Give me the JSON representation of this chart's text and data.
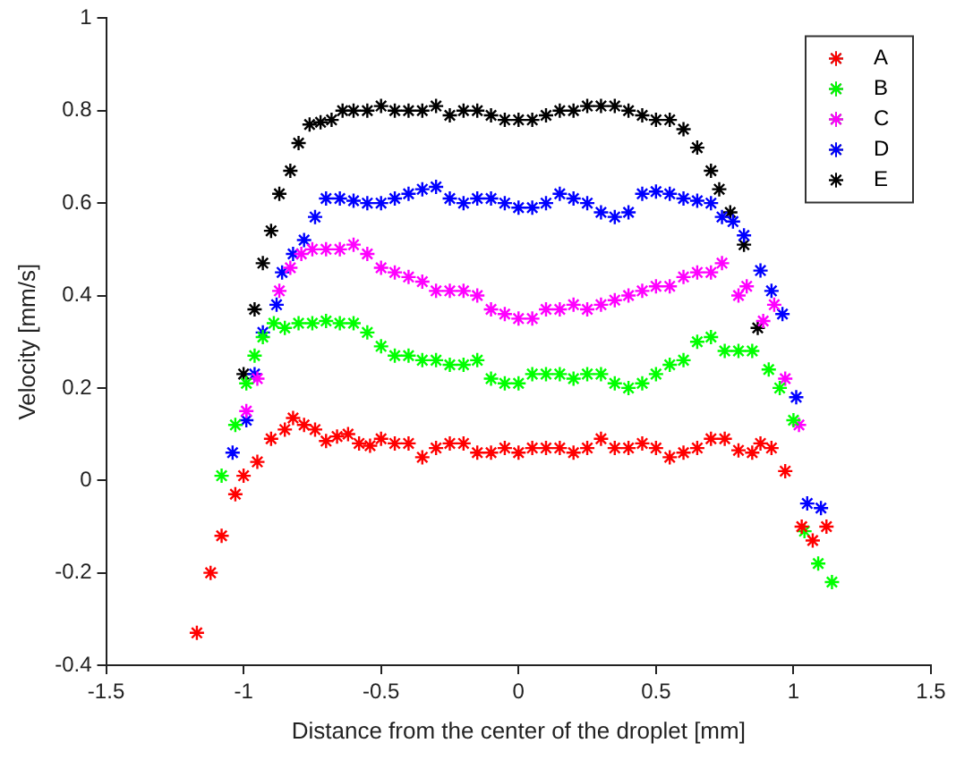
{
  "chart_data": {
    "type": "scatter",
    "xlabel": "Distance from the center of the droplet [mm]",
    "ylabel": "Velocity [mm/s]",
    "xlim": [
      -1.5,
      1.5
    ],
    "xticks": [
      -1.5,
      -1,
      -0.5,
      0,
      0.5,
      1,
      1.5
    ],
    "ylim": [
      -0.4,
      1
    ],
    "yticks": [
      -0.4,
      -0.2,
      0,
      0.2,
      0.4,
      0.6,
      0.8,
      1
    ],
    "grid": false,
    "legend": "top right",
    "marker": "cross",
    "series": [
      {
        "name": "A",
        "color": "#ff0000",
        "x": [
          -1.17,
          -1.12,
          -1.08,
          -1.03,
          -1.0,
          -0.95,
          -0.9,
          -0.85,
          -0.82,
          -0.78,
          -0.74,
          -0.7,
          -0.66,
          -0.62,
          -0.58,
          -0.54,
          -0.5,
          -0.45,
          -0.4,
          -0.35,
          -0.3,
          -0.25,
          -0.2,
          -0.15,
          -0.1,
          -0.05,
          0,
          0.05,
          0.1,
          0.15,
          0.2,
          0.25,
          0.3,
          0.35,
          0.4,
          0.45,
          0.5,
          0.55,
          0.6,
          0.65,
          0.7,
          0.75,
          0.8,
          0.85,
          0.88,
          0.92,
          0.97,
          1.03,
          1.07,
          1.12
        ],
        "values": [
          -0.33,
          -0.2,
          -0.12,
          -0.03,
          0.01,
          0.04,
          0.09,
          0.11,
          0.135,
          0.12,
          0.11,
          0.085,
          0.095,
          0.1,
          0.08,
          0.075,
          0.09,
          0.08,
          0.08,
          0.05,
          0.07,
          0.08,
          0.08,
          0.06,
          0.06,
          0.07,
          0.06,
          0.07,
          0.07,
          0.07,
          0.06,
          0.07,
          0.09,
          0.07,
          0.07,
          0.08,
          0.07,
          0.05,
          0.06,
          0.07,
          0.09,
          0.09,
          0.065,
          0.06,
          0.08,
          0.07,
          0.02,
          -0.1,
          -0.13,
          -0.1
        ]
      },
      {
        "name": "B",
        "color": "#00ff00",
        "x": [
          -1.08,
          -1.03,
          -0.99,
          -0.96,
          -0.93,
          -0.89,
          -0.85,
          -0.8,
          -0.75,
          -0.7,
          -0.65,
          -0.6,
          -0.55,
          -0.5,
          -0.45,
          -0.4,
          -0.35,
          -0.3,
          -0.25,
          -0.2,
          -0.15,
          -0.1,
          -0.05,
          0,
          0.05,
          0.1,
          0.15,
          0.2,
          0.25,
          0.3,
          0.35,
          0.4,
          0.45,
          0.5,
          0.55,
          0.6,
          0.65,
          0.7,
          0.75,
          0.8,
          0.85,
          0.91,
          0.95,
          1.0,
          1.04,
          1.09,
          1.14
        ],
        "values": [
          0.01,
          0.12,
          0.21,
          0.27,
          0.31,
          0.34,
          0.33,
          0.34,
          0.34,
          0.345,
          0.34,
          0.34,
          0.32,
          0.29,
          0.27,
          0.27,
          0.26,
          0.26,
          0.25,
          0.25,
          0.26,
          0.22,
          0.21,
          0.21,
          0.23,
          0.23,
          0.23,
          0.22,
          0.23,
          0.23,
          0.21,
          0.2,
          0.21,
          0.23,
          0.25,
          0.26,
          0.3,
          0.31,
          0.28,
          0.28,
          0.28,
          0.24,
          0.2,
          0.13,
          -0.11,
          -0.18,
          -0.22
        ]
      },
      {
        "name": "C",
        "color": "#ff00ff",
        "x": [
          -0.99,
          -0.95,
          -0.87,
          -0.83,
          -0.79,
          -0.75,
          -0.7,
          -0.65,
          -0.6,
          -0.55,
          -0.5,
          -0.45,
          -0.4,
          -0.35,
          -0.3,
          -0.25,
          -0.2,
          -0.15,
          -0.1,
          -0.05,
          0,
          0.05,
          0.1,
          0.15,
          0.2,
          0.25,
          0.3,
          0.35,
          0.4,
          0.45,
          0.5,
          0.55,
          0.6,
          0.65,
          0.7,
          0.74,
          0.8,
          0.83,
          0.89,
          0.93,
          0.97,
          1.02
        ],
        "values": [
          0.15,
          0.22,
          0.41,
          0.46,
          0.49,
          0.5,
          0.5,
          0.5,
          0.51,
          0.49,
          0.46,
          0.45,
          0.44,
          0.43,
          0.41,
          0.41,
          0.41,
          0.4,
          0.37,
          0.36,
          0.35,
          0.35,
          0.37,
          0.37,
          0.38,
          0.37,
          0.38,
          0.39,
          0.4,
          0.41,
          0.42,
          0.42,
          0.44,
          0.45,
          0.45,
          0.47,
          0.4,
          0.42,
          0.345,
          0.38,
          0.22,
          0.12
        ]
      },
      {
        "name": "D",
        "color": "#0000ff",
        "x": [
          -1.04,
          -0.99,
          -0.96,
          -0.93,
          -0.88,
          -0.86,
          -0.82,
          -0.78,
          -0.74,
          -0.7,
          -0.65,
          -0.6,
          -0.55,
          -0.5,
          -0.45,
          -0.4,
          -0.35,
          -0.3,
          -0.25,
          -0.2,
          -0.15,
          -0.1,
          -0.05,
          0,
          0.05,
          0.1,
          0.15,
          0.2,
          0.25,
          0.3,
          0.35,
          0.4,
          0.45,
          0.5,
          0.55,
          0.6,
          0.65,
          0.7,
          0.74,
          0.78,
          0.82,
          0.88,
          0.92,
          0.96,
          1.01,
          1.05,
          1.1
        ],
        "values": [
          0.06,
          0.13,
          0.23,
          0.32,
          0.38,
          0.45,
          0.49,
          0.52,
          0.57,
          0.61,
          0.61,
          0.605,
          0.6,
          0.6,
          0.61,
          0.62,
          0.63,
          0.635,
          0.61,
          0.6,
          0.61,
          0.61,
          0.6,
          0.59,
          0.59,
          0.6,
          0.62,
          0.61,
          0.6,
          0.58,
          0.57,
          0.58,
          0.62,
          0.625,
          0.62,
          0.61,
          0.605,
          0.6,
          0.57,
          0.56,
          0.53,
          0.454,
          0.41,
          0.36,
          0.18,
          -0.05,
          -0.06
        ]
      },
      {
        "name": "E",
        "color": "#000000",
        "x": [
          -1.0,
          -0.96,
          -0.93,
          -0.9,
          -0.87,
          -0.83,
          -0.8,
          -0.76,
          -0.72,
          -0.68,
          -0.64,
          -0.6,
          -0.55,
          -0.5,
          -0.45,
          -0.4,
          -0.35,
          -0.3,
          -0.25,
          -0.2,
          -0.15,
          -0.1,
          -0.05,
          0,
          0.05,
          0.1,
          0.15,
          0.2,
          0.25,
          0.3,
          0.35,
          0.4,
          0.45,
          0.5,
          0.55,
          0.6,
          0.65,
          0.7,
          0.73,
          0.77,
          0.82,
          0.87
        ],
        "values": [
          0.23,
          0.37,
          0.47,
          0.54,
          0.62,
          0.67,
          0.73,
          0.77,
          0.775,
          0.78,
          0.8,
          0.8,
          0.8,
          0.81,
          0.8,
          0.8,
          0.8,
          0.81,
          0.79,
          0.8,
          0.8,
          0.79,
          0.78,
          0.78,
          0.78,
          0.79,
          0.8,
          0.8,
          0.81,
          0.81,
          0.81,
          0.8,
          0.79,
          0.78,
          0.78,
          0.76,
          0.72,
          0.67,
          0.63,
          0.58,
          0.51,
          0.33
        ]
      }
    ]
  }
}
